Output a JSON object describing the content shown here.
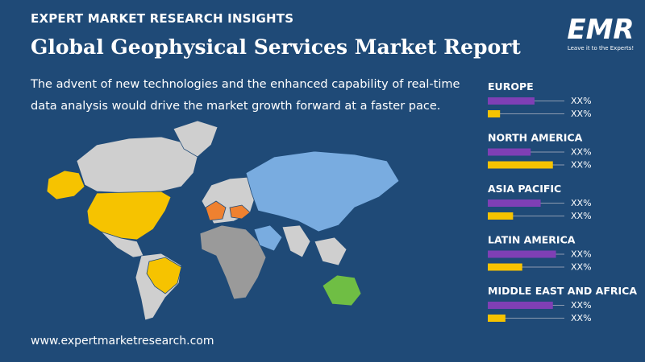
{
  "header": {
    "kicker": "EXPERT MARKET RESEARCH INSIGHTS",
    "title": "Global Geophysical Services Market Report",
    "description": "The advent of new technologies and the enhanced capability of real-time data analysis would drive the market growth forward at a faster pace."
  },
  "logo": {
    "text": "EMR",
    "tagline": "Leave it to the Experts!"
  },
  "regions": [
    {
      "name": "EUROPE",
      "bars": [
        {
          "value": 61,
          "label": "XX%"
        },
        {
          "value": 16,
          "label": "XX%"
        }
      ]
    },
    {
      "name": "NORTH AMERICA",
      "bars": [
        {
          "value": 56,
          "label": "XX%"
        },
        {
          "value": 85,
          "label": "XX%"
        }
      ]
    },
    {
      "name": "ASIA PACIFIC",
      "bars": [
        {
          "value": 69,
          "label": "XX%"
        },
        {
          "value": 33,
          "label": "XX%"
        }
      ]
    },
    {
      "name": "LATIN AMERICA",
      "bars": [
        {
          "value": 89,
          "label": "XX%"
        },
        {
          "value": 45,
          "label": "XX%"
        }
      ]
    },
    {
      "name": "MIDDLE EAST AND AFRICA",
      "bars": [
        {
          "value": 85,
          "label": "XX%"
        },
        {
          "value": 23,
          "label": "XX%"
        }
      ]
    }
  ],
  "footer": {
    "url": "www.expertmarketresearch.com"
  }
}
